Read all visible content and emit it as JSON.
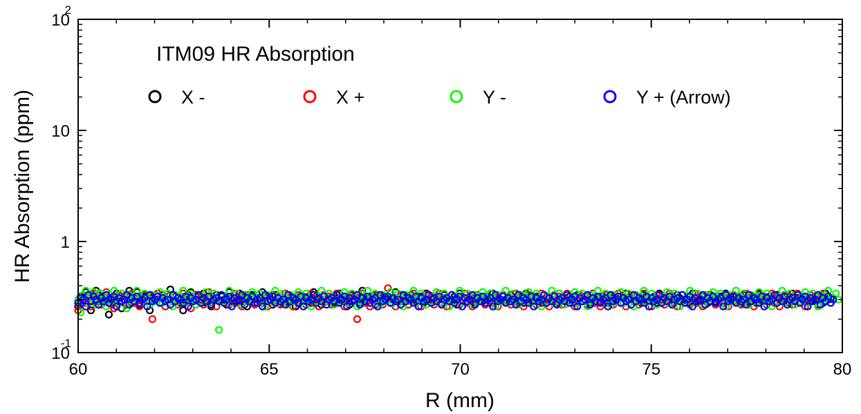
{
  "chart_data": {
    "type": "scatter",
    "title": "ITM09 HR Absorption",
    "xlabel": "R (mm)",
    "ylabel": "HR Absorption (ppm)",
    "xlim": [
      60,
      80
    ],
    "ylim": [
      0.1,
      100
    ],
    "yscale": "log",
    "x_ticks": [
      60,
      65,
      70,
      75,
      80
    ],
    "x_tick_labels": [
      "60",
      "65",
      "70",
      "75",
      "80"
    ],
    "y_ticks": [
      {
        "value": 0.1,
        "base": "10",
        "exp": "-1"
      },
      {
        "value": 1,
        "base": "1",
        "exp": ""
      },
      {
        "value": 10,
        "base": "10",
        "exp": ""
      },
      {
        "value": 100,
        "base": "10",
        "exp": "2"
      }
    ],
    "legend_position": "top",
    "x_step": 0.067,
    "series": [
      {
        "name": "X -",
        "color": "#000000",
        "values": [
          0.26,
          0.32,
          0.3,
          0.35,
          0.28,
          0.24,
          0.3,
          0.36,
          0.33,
          0.29,
          0.32,
          0.3,
          0.22,
          0.27,
          0.31,
          0.34,
          0.29,
          0.25,
          0.3,
          0.33,
          0.36,
          0.28,
          0.31,
          0.35,
          0.27,
          0.3,
          0.32,
          0.29,
          0.24,
          0.31,
          0.3,
          0.34,
          0.28,
          0.33,
          0.26,
          0.3,
          0.37,
          0.29,
          0.32,
          0.31,
          0.28,
          0.24,
          0.3,
          0.33,
          0.35,
          0.29,
          0.27,
          0.32,
          0.3,
          0.34,
          0.28,
          0.31,
          0.26,
          0.3,
          0.33,
          0.29,
          0.32,
          0.3,
          0.27,
          0.35,
          0.31,
          0.28,
          0.3,
          0.34,
          0.29,
          0.32,
          0.26,
          0.3,
          0.33,
          0.31,
          0.28,
          0.3,
          0.35,
          0.29,
          0.32,
          0.3,
          0.27,
          0.33,
          0.31,
          0.28,
          0.3,
          0.34,
          0.29,
          0.32,
          0.3,
          0.26,
          0.33,
          0.31,
          0.29,
          0.3,
          0.32,
          0.28,
          0.35,
          0.3,
          0.31,
          0.27,
          0.33,
          0.29,
          0.32,
          0.3,
          0.28,
          0.31,
          0.34,
          0.29,
          0.3,
          0.32,
          0.27,
          0.33,
          0.3,
          0.31,
          0.28,
          0.36,
          0.3,
          0.29,
          0.32,
          0.31,
          0.27,
          0.33,
          0.3,
          0.29,
          0.32,
          0.31,
          0.28,
          0.3,
          0.35,
          0.3,
          0.29,
          0.32,
          0.31,
          0.27,
          0.33,
          0.3,
          0.29,
          0.31,
          0.32,
          0.28,
          0.34,
          0.3,
          0.31,
          0.29,
          0.32,
          0.3,
          0.28,
          0.33,
          0.31,
          0.29,
          0.3,
          0.32,
          0.27,
          0.34,
          0.3,
          0.31,
          0.29,
          0.32,
          0.3,
          0.28,
          0.33,
          0.31,
          0.29,
          0.3,
          0.32,
          0.28,
          0.34,
          0.3,
          0.31,
          0.29,
          0.32,
          0.3,
          0.28,
          0.33,
          0.31,
          0.29,
          0.3,
          0.32,
          0.28,
          0.34,
          0.3,
          0.31,
          0.29,
          0.32,
          0.3,
          0.28,
          0.33,
          0.31,
          0.29,
          0.3,
          0.32,
          0.28,
          0.34,
          0.3,
          0.31,
          0.29,
          0.32,
          0.3,
          0.28,
          0.33,
          0.31,
          0.29,
          0.3,
          0.32,
          0.28,
          0.34,
          0.3,
          0.31,
          0.29,
          0.32,
          0.3,
          0.28,
          0.33,
          0.31,
          0.29,
          0.3,
          0.32,
          0.28,
          0.34,
          0.3,
          0.31,
          0.29,
          0.32,
          0.3,
          0.28,
          0.33,
          0.31,
          0.29,
          0.3,
          0.32,
          0.28,
          0.34,
          0.3,
          0.31,
          0.29,
          0.32,
          0.3,
          0.28,
          0.33,
          0.31,
          0.29,
          0.3,
          0.32,
          0.28,
          0.34,
          0.3,
          0.31,
          0.29,
          0.32,
          0.3,
          0.28,
          0.33,
          0.31,
          0.29,
          0.3,
          0.32,
          0.28,
          0.34,
          0.3,
          0.31,
          0.29,
          0.32,
          0.3,
          0.28,
          0.33,
          0.31,
          0.29,
          0.3,
          0.32,
          0.28,
          0.34,
          0.3,
          0.31,
          0.29,
          0.32,
          0.3,
          0.28,
          0.33,
          0.31,
          0.29,
          0.3,
          0.32,
          0.28,
          0.34,
          0.3,
          0.31,
          0.29,
          0.32,
          0.3,
          0.28,
          0.33,
          0.31,
          0.29,
          0.3,
          0.32,
          0.28,
          0.34,
          0.3,
          0.31
        ]
      },
      {
        "name": "X +",
        "color": "#ff0000",
        "values": [
          0.24,
          0.3,
          0.33,
          0.28,
          0.31,
          0.26,
          0.34,
          0.29,
          0.32,
          0.27,
          0.3,
          0.35,
          0.28,
          0.31,
          0.25,
          0.3,
          0.33,
          0.29,
          0.32,
          0.27,
          0.3,
          0.34,
          0.28,
          0.31,
          0.26,
          0.3,
          0.33,
          0.29,
          0.32,
          0.2,
          0.3,
          0.34,
          0.28,
          0.31,
          0.26,
          0.3,
          0.33,
          0.29,
          0.32,
          0.27,
          0.3,
          0.34,
          0.28,
          0.31,
          0.25,
          0.3,
          0.33,
          0.29,
          0.32,
          0.27,
          0.3,
          0.35,
          0.28,
          0.31,
          0.26,
          0.3,
          0.33,
          0.29,
          0.32,
          0.27,
          0.3,
          0.34,
          0.28,
          0.31,
          0.26,
          0.3,
          0.33,
          0.29,
          0.32,
          0.27,
          0.3,
          0.34,
          0.28,
          0.31,
          0.26,
          0.3,
          0.33,
          0.29,
          0.32,
          0.27,
          0.3,
          0.34,
          0.28,
          0.31,
          0.26,
          0.3,
          0.33,
          0.29,
          0.32,
          0.27,
          0.3,
          0.34,
          0.28,
          0.31,
          0.26,
          0.3,
          0.33,
          0.29,
          0.32,
          0.27,
          0.3,
          0.34,
          0.28,
          0.31,
          0.26,
          0.3,
          0.33,
          0.29,
          0.32,
          0.2,
          0.3,
          0.34,
          0.28,
          0.31,
          0.26,
          0.3,
          0.33,
          0.29,
          0.32,
          0.27,
          0.3,
          0.38,
          0.28,
          0.31,
          0.26,
          0.3,
          0.33,
          0.29,
          0.32,
          0.27,
          0.3,
          0.34,
          0.28,
          0.31,
          0.26,
          0.3,
          0.33,
          0.29,
          0.32,
          0.27,
          0.3,
          0.34,
          0.28,
          0.31,
          0.26,
          0.3,
          0.33,
          0.29,
          0.32,
          0.27,
          0.3,
          0.34,
          0.28,
          0.31,
          0.26,
          0.3,
          0.33,
          0.29,
          0.32,
          0.27,
          0.3,
          0.34,
          0.28,
          0.31,
          0.26,
          0.3,
          0.33,
          0.29,
          0.32,
          0.27,
          0.3,
          0.34,
          0.28,
          0.31,
          0.26,
          0.3,
          0.33,
          0.29,
          0.32,
          0.27,
          0.3,
          0.34,
          0.28,
          0.31,
          0.26,
          0.3,
          0.33,
          0.29,
          0.32,
          0.27,
          0.3,
          0.34,
          0.28,
          0.31,
          0.26,
          0.3,
          0.33,
          0.29,
          0.32,
          0.27,
          0.3,
          0.34,
          0.28,
          0.31,
          0.26,
          0.3,
          0.33,
          0.29,
          0.32,
          0.27,
          0.3,
          0.34,
          0.28,
          0.31,
          0.26,
          0.3,
          0.33,
          0.29,
          0.32,
          0.27,
          0.3,
          0.34,
          0.28,
          0.31,
          0.26,
          0.3,
          0.33,
          0.29,
          0.32,
          0.27,
          0.3,
          0.34,
          0.28,
          0.31,
          0.26,
          0.3,
          0.33,
          0.29,
          0.32,
          0.27,
          0.3,
          0.34,
          0.28,
          0.31,
          0.26,
          0.3,
          0.33,
          0.29,
          0.32,
          0.27,
          0.3,
          0.34,
          0.28,
          0.31,
          0.26,
          0.3,
          0.33,
          0.29,
          0.32,
          0.27,
          0.3,
          0.34,
          0.28,
          0.31,
          0.26,
          0.3,
          0.33,
          0.29,
          0.32,
          0.27,
          0.3,
          0.34,
          0.28,
          0.31,
          0.26,
          0.3,
          0.33,
          0.29,
          0.32,
          0.27,
          0.3,
          0.34,
          0.28,
          0.31,
          0.26,
          0.3,
          0.33,
          0.29,
          0.32,
          0.27,
          0.3,
          0.34
        ]
      },
      {
        "name": "Y -",
        "color": "#00ff00",
        "values": [
          0.3,
          0.23,
          0.33,
          0.36,
          0.28,
          0.32,
          0.35,
          0.27,
          0.31,
          0.34,
          0.3,
          0.26,
          0.33,
          0.29,
          0.36,
          0.31,
          0.28,
          0.34,
          0.3,
          0.25,
          0.33,
          0.29,
          0.32,
          0.36,
          0.28,
          0.31,
          0.34,
          0.3,
          0.27,
          0.33,
          0.29,
          0.32,
          0.35,
          0.28,
          0.31,
          0.34,
          0.3,
          0.26,
          0.33,
          0.29,
          0.32,
          0.36,
          0.28,
          0.31,
          0.34,
          0.3,
          0.27,
          0.33,
          0.29,
          0.32,
          0.35,
          0.28,
          0.31,
          0.34,
          0.3,
          0.16,
          0.33,
          0.29,
          0.32,
          0.36,
          0.28,
          0.31,
          0.34,
          0.3,
          0.27,
          0.33,
          0.29,
          0.32,
          0.35,
          0.28,
          0.31,
          0.34,
          0.3,
          0.26,
          0.33,
          0.29,
          0.32,
          0.36,
          0.28,
          0.31,
          0.34,
          0.3,
          0.27,
          0.33,
          0.29,
          0.32,
          0.35,
          0.28,
          0.31,
          0.34,
          0.3,
          0.26,
          0.33,
          0.29,
          0.32,
          0.36,
          0.28,
          0.31,
          0.34,
          0.3,
          0.27,
          0.33,
          0.29,
          0.32,
          0.35,
          0.28,
          0.31,
          0.34,
          0.3,
          0.26,
          0.33,
          0.29,
          0.32,
          0.36,
          0.28,
          0.31,
          0.34,
          0.3,
          0.27,
          0.33,
          0.29,
          0.32,
          0.35,
          0.28,
          0.31,
          0.34,
          0.3,
          0.26,
          0.33,
          0.29,
          0.32,
          0.36,
          0.28,
          0.31,
          0.34,
          0.3,
          0.27,
          0.33,
          0.29,
          0.32,
          0.35,
          0.28,
          0.31,
          0.34,
          0.3,
          0.26,
          0.33,
          0.29,
          0.32,
          0.36,
          0.28,
          0.31,
          0.34,
          0.3,
          0.27,
          0.33,
          0.29,
          0.32,
          0.35,
          0.28,
          0.31,
          0.34,
          0.3,
          0.26,
          0.33,
          0.29,
          0.32,
          0.36,
          0.28,
          0.31,
          0.34,
          0.3,
          0.27,
          0.33,
          0.29,
          0.32,
          0.35,
          0.28,
          0.31,
          0.34,
          0.3,
          0.26,
          0.33,
          0.29,
          0.32,
          0.36,
          0.28,
          0.31,
          0.34,
          0.3,
          0.27,
          0.33,
          0.29,
          0.32,
          0.35,
          0.28,
          0.31,
          0.34,
          0.3,
          0.26,
          0.33,
          0.29,
          0.32,
          0.36,
          0.28,
          0.31,
          0.34,
          0.3,
          0.27,
          0.33,
          0.29,
          0.32,
          0.35,
          0.28,
          0.31,
          0.34,
          0.3,
          0.26,
          0.33,
          0.29,
          0.32,
          0.36,
          0.28,
          0.31,
          0.34,
          0.3,
          0.27,
          0.33,
          0.29,
          0.32,
          0.35,
          0.28,
          0.31,
          0.34,
          0.3,
          0.26,
          0.33,
          0.29,
          0.32,
          0.36,
          0.28,
          0.31,
          0.34,
          0.3,
          0.27,
          0.33,
          0.29,
          0.32,
          0.35,
          0.28,
          0.31,
          0.34,
          0.3,
          0.26,
          0.33,
          0.29,
          0.32,
          0.36,
          0.28,
          0.31,
          0.34,
          0.3,
          0.27,
          0.33,
          0.29,
          0.32,
          0.35,
          0.28,
          0.31,
          0.34,
          0.3,
          0.26,
          0.33,
          0.29,
          0.32,
          0.36,
          0.28,
          0.31,
          0.34,
          0.3,
          0.27,
          0.33,
          0.29,
          0.32,
          0.35,
          0.28,
          0.31,
          0.34,
          0.3,
          0.26,
          0.33,
          0.29,
          0.32,
          0.36,
          0.28,
          0.31,
          0.34,
          0.3
        ]
      },
      {
        "name": "Y + (Arrow)",
        "color": "#0000ff",
        "values": [
          0.28,
          0.31,
          0.3,
          0.26,
          0.33,
          0.29,
          0.32,
          0.3,
          0.27,
          0.31,
          0.29,
          0.33,
          0.28,
          0.3,
          0.32,
          0.26,
          0.31,
          0.29,
          0.3,
          0.33,
          0.27,
          0.31,
          0.29,
          0.32,
          0.28,
          0.3,
          0.31,
          0.26,
          0.33,
          0.29,
          0.3,
          0.32,
          0.28,
          0.31,
          0.29,
          0.3,
          0.27,
          0.33,
          0.29,
          0.31,
          0.3,
          0.28,
          0.32,
          0.26,
          0.31,
          0.29,
          0.3,
          0.33,
          0.28,
          0.31,
          0.29,
          0.32,
          0.27,
          0.3,
          0.31,
          0.29,
          0.33,
          0.28,
          0.3,
          0.32,
          0.26,
          0.31,
          0.29,
          0.3,
          0.33,
          0.27,
          0.31,
          0.29,
          0.32,
          0.28,
          0.3,
          0.31,
          0.26,
          0.33,
          0.29,
          0.3,
          0.32,
          0.28,
          0.31,
          0.29,
          0.3,
          0.27,
          0.33,
          0.29,
          0.31,
          0.3,
          0.28,
          0.32,
          0.26,
          0.31,
          0.29,
          0.3,
          0.33,
          0.28,
          0.31,
          0.29,
          0.32,
          0.27,
          0.3,
          0.31,
          0.29,
          0.33,
          0.28,
          0.3,
          0.32,
          0.26,
          0.31,
          0.29,
          0.3,
          0.33,
          0.27,
          0.31,
          0.29,
          0.32,
          0.28,
          0.3,
          0.31,
          0.26,
          0.33,
          0.29,
          0.3,
          0.32,
          0.28,
          0.31,
          0.29,
          0.3,
          0.27,
          0.33,
          0.29,
          0.31,
          0.3,
          0.28,
          0.32,
          0.26,
          0.31,
          0.29,
          0.3,
          0.33,
          0.28,
          0.31,
          0.29,
          0.32,
          0.27,
          0.3,
          0.31,
          0.29,
          0.33,
          0.28,
          0.3,
          0.32,
          0.26,
          0.31,
          0.29,
          0.3,
          0.33,
          0.27,
          0.31,
          0.29,
          0.32,
          0.28,
          0.3,
          0.31,
          0.26,
          0.33,
          0.29,
          0.3,
          0.32,
          0.28,
          0.31,
          0.29,
          0.3,
          0.27,
          0.33,
          0.29,
          0.31,
          0.3,
          0.28,
          0.32,
          0.26,
          0.31,
          0.29,
          0.3,
          0.33,
          0.28,
          0.31,
          0.29,
          0.32,
          0.27,
          0.3,
          0.31,
          0.29,
          0.33,
          0.28,
          0.3,
          0.32,
          0.26,
          0.31,
          0.29,
          0.3,
          0.33,
          0.27,
          0.31,
          0.29,
          0.32,
          0.28,
          0.3,
          0.31,
          0.26,
          0.33,
          0.29,
          0.3,
          0.32,
          0.28,
          0.31,
          0.29,
          0.3,
          0.27,
          0.33,
          0.29,
          0.31,
          0.3,
          0.28,
          0.32,
          0.26,
          0.31,
          0.29,
          0.3,
          0.33,
          0.28,
          0.31,
          0.29,
          0.32,
          0.27,
          0.3,
          0.31,
          0.29,
          0.33,
          0.28,
          0.3,
          0.32,
          0.26,
          0.31,
          0.29,
          0.3,
          0.33,
          0.27,
          0.31,
          0.29,
          0.32,
          0.28,
          0.3,
          0.31,
          0.26,
          0.33,
          0.29,
          0.3,
          0.32,
          0.28,
          0.31,
          0.29,
          0.3,
          0.27,
          0.33,
          0.29,
          0.31,
          0.3,
          0.28,
          0.32,
          0.26,
          0.31,
          0.29,
          0.3,
          0.33,
          0.28,
          0.31,
          0.29,
          0.32,
          0.27,
          0.3,
          0.31,
          0.29,
          0.33,
          0.28,
          0.3,
          0.32,
          0.26,
          0.31,
          0.29,
          0.3,
          0.33,
          0.27,
          0.31,
          0.29,
          0.32,
          0.28,
          0.3
        ]
      }
    ]
  }
}
